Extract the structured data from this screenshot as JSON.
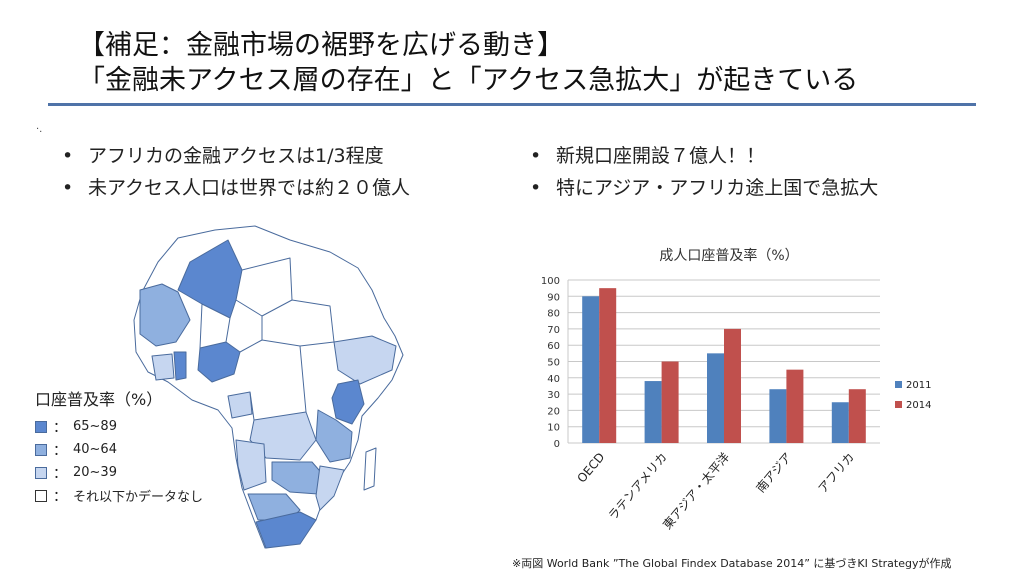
{
  "title": {
    "line1": "【補足：金融市場の裾野を広げる動き】",
    "line2": "「金融未アクセス層の存在」と「アクセス急拡大」が起きている"
  },
  "stray_mark": "·.",
  "bullets_left": [
    "アフリカの金融アクセスは1/3程度",
    "未アクセス人口は世界では約２０億人"
  ],
  "bullets_right": [
    "新規口座開設７億人！！",
    "特にアジア・アフリカ途上国で急拡大"
  ],
  "map_legend": {
    "title": "口座普及率（%）",
    "items": [
      {
        "range": "65~89",
        "color": "#5b87cf"
      },
      {
        "range": "40~64",
        "color": "#8fb0df"
      },
      {
        "range": "20~39",
        "color": "#c6d6f0"
      },
      {
        "range": "それ以下かデータなし",
        "color": "#ffffff"
      }
    ],
    "colon": "："
  },
  "colors": {
    "map_border": "#4a6b9d",
    "rule": "#4f73a8"
  },
  "chart_data": {
    "type": "bar",
    "title": "成人口座普及率（%）",
    "categories": [
      "OECD",
      "ラテンアメリカ",
      "東アジア・太平洋",
      "南アジア",
      "アフリカ"
    ],
    "series": [
      {
        "name": "2011",
        "color": "#4f81bd",
        "values": [
          90,
          38,
          55,
          33,
          25
        ]
      },
      {
        "name": "2014",
        "color": "#c0504d",
        "values": [
          95,
          50,
          70,
          45,
          33
        ]
      }
    ],
    "ylim": [
      0,
      100
    ],
    "yticks": [
      0,
      10,
      20,
      30,
      40,
      50,
      60,
      70,
      80,
      90,
      100
    ],
    "grid": true,
    "legend": "right"
  },
  "footnote": "※両図 World Bank ”The Global Findex Database 2014” に基づきKI Strategyが作成"
}
